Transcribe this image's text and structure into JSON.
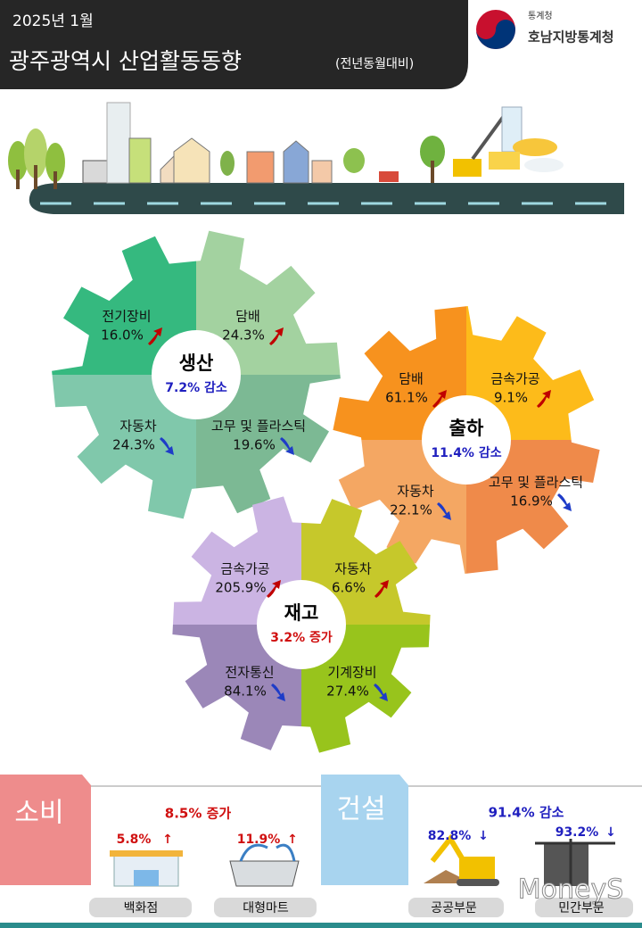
{
  "header": {
    "date": "2025년 1월",
    "title": "광주광역시 산업활동동향",
    "subtitle": "(전년동월대비)",
    "org_small": "통계청",
    "org": "호남지방통계청"
  },
  "gears": [
    {
      "name": "생산",
      "summary": "7.2% 감소",
      "summary_color": "#1f1fbf",
      "colors": [
        "#35b97f",
        "#a3d2a0",
        "#80c8ab",
        "#7cb994"
      ],
      "items": [
        {
          "label": "전기장비",
          "value": "16.0%",
          "trend": "up"
        },
        {
          "label": "담배",
          "value": "24.3%",
          "trend": "up"
        },
        {
          "label": "자동차",
          "value": "24.3%",
          "trend": "down"
        },
        {
          "label": "고무 및 플라스틱",
          "value": "19.6%",
          "trend": "down"
        }
      ]
    },
    {
      "name": "출하",
      "summary": "11.4% 감소",
      "summary_color": "#1f1fbf",
      "colors": [
        "#f7921e",
        "#fdbb1a",
        "#f4a763",
        "#ef8a4a"
      ],
      "items": [
        {
          "label": "담배",
          "value": "61.1%",
          "trend": "up"
        },
        {
          "label": "금속가공",
          "value": "9.1%",
          "trend": "up"
        },
        {
          "label": "자동차",
          "value": "22.1%",
          "trend": "down"
        },
        {
          "label": "고무 및 플라스틱",
          "value": "16.9%",
          "trend": "down"
        }
      ]
    },
    {
      "name": "재고",
      "summary": "3.2% 증가",
      "summary_color": "#d01010",
      "colors": [
        "#cbb4e3",
        "#c6c82b",
        "#9b87b8",
        "#98c41c"
      ],
      "items": [
        {
          "label": "금속가공",
          "value": "205.9%",
          "trend": "up"
        },
        {
          "label": "자동차",
          "value": "6.6%",
          "trend": "up"
        },
        {
          "label": "전자통신",
          "value": "84.1%",
          "trend": "down"
        },
        {
          "label": "기계장비",
          "value": "27.4%",
          "trend": "down"
        }
      ]
    }
  ],
  "consumption": {
    "title": "소비",
    "summary": "8.5% 증가",
    "summary_color": "#d01010",
    "items": [
      {
        "label": "백화점",
        "value": "5.8%",
        "arrow": "↑",
        "color": "#d01010"
      },
      {
        "label": "대형마트",
        "value": "11.9%",
        "arrow": "↑",
        "color": "#d01010"
      }
    ]
  },
  "construction": {
    "title": "건설",
    "summary": "91.4% 감소",
    "summary_color": "#1f1fbf",
    "items": [
      {
        "label": "공공부문",
        "value": "82.8%",
        "arrow": "↓",
        "color": "#1f1fbf"
      },
      {
        "label": "민간부문",
        "value": "93.2%",
        "arrow": "↓",
        "color": "#1f1fbf"
      }
    ]
  },
  "watermark": "MoneyS"
}
